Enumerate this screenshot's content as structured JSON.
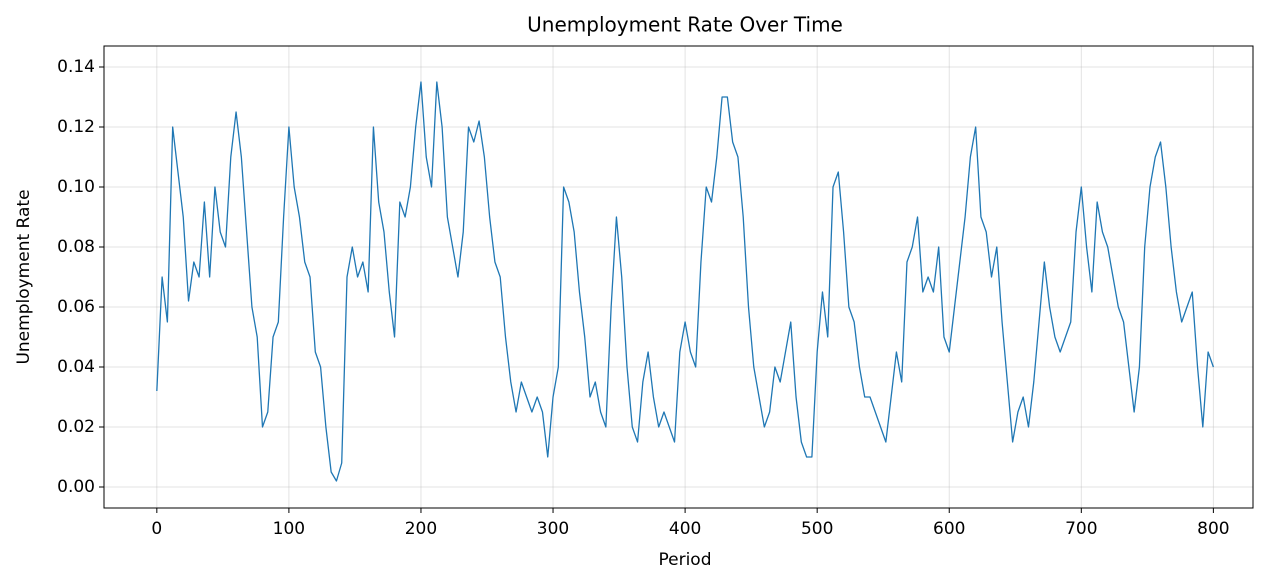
{
  "chart_data": {
    "type": "line",
    "title": "Unemployment Rate Over Time",
    "xlabel": "Period",
    "ylabel": "Unemployment Rate",
    "xlim": [
      -40,
      830
    ],
    "ylim": [
      -0.007,
      0.147
    ],
    "xticks": [
      0,
      100,
      200,
      300,
      400,
      500,
      600,
      700,
      800
    ],
    "yticks": [
      {
        "value": 0,
        "label": "0.00"
      },
      {
        "value": 0.02,
        "label": "0.02"
      },
      {
        "value": 0.04,
        "label": "0.04"
      },
      {
        "value": 0.06,
        "label": "0.06"
      },
      {
        "value": 0.08,
        "label": "0.08"
      },
      {
        "value": 0.1,
        "label": "0.10"
      },
      {
        "value": 0.12,
        "label": "0.12"
      },
      {
        "value": 0.14,
        "label": "0.14"
      }
    ],
    "grid": true,
    "x": [
      0,
      4,
      8,
      12,
      16,
      20,
      24,
      28,
      32,
      36,
      40,
      44,
      48,
      52,
      56,
      60,
      64,
      68,
      72,
      76,
      80,
      84,
      88,
      92,
      96,
      100,
      104,
      108,
      112,
      116,
      120,
      124,
      128,
      132,
      136,
      140,
      144,
      148,
      152,
      156,
      160,
      164,
      168,
      172,
      176,
      180,
      184,
      188,
      192,
      196,
      200,
      204,
      208,
      212,
      216,
      220,
      224,
      228,
      232,
      236,
      240,
      244,
      248,
      252,
      256,
      260,
      264,
      268,
      272,
      276,
      280,
      284,
      288,
      292,
      296,
      300,
      304,
      308,
      312,
      316,
      320,
      324,
      328,
      332,
      336,
      340,
      344,
      348,
      352,
      356,
      360,
      364,
      368,
      372,
      376,
      380,
      384,
      388,
      392,
      396,
      400,
      404,
      408,
      412,
      416,
      420,
      424,
      428,
      432,
      436,
      440,
      444,
      448,
      452,
      456,
      460,
      464,
      468,
      472,
      476,
      480,
      484,
      488,
      492,
      496,
      500,
      504,
      508,
      512,
      516,
      520,
      524,
      528,
      532,
      536,
      540,
      544,
      548,
      552,
      556,
      560,
      564,
      568,
      572,
      576,
      580,
      584,
      588,
      592,
      596,
      600,
      604,
      608,
      612,
      616,
      620,
      624,
      628,
      632,
      636,
      640,
      644,
      648,
      652,
      656,
      660,
      664,
      668,
      672,
      676,
      680,
      684,
      688,
      692,
      696,
      700,
      704,
      708,
      712,
      716,
      720,
      724,
      728,
      732,
      736,
      740,
      744,
      748,
      752,
      756,
      760,
      764,
      768,
      772,
      776,
      780,
      784,
      788,
      792,
      796,
      800
    ],
    "series": [
      {
        "color": "#1f77b4",
        "values": [
          0.032,
          0.07,
          0.055,
          0.12,
          0.105,
          0.09,
          0.062,
          0.075,
          0.07,
          0.095,
          0.07,
          0.1,
          0.085,
          0.08,
          0.11,
          0.125,
          0.11,
          0.085,
          0.06,
          0.05,
          0.02,
          0.025,
          0.05,
          0.055,
          0.09,
          0.12,
          0.1,
          0.09,
          0.075,
          0.07,
          0.045,
          0.04,
          0.02,
          0.005,
          0.002,
          0.008,
          0.07,
          0.08,
          0.07,
          0.075,
          0.065,
          0.12,
          0.095,
          0.085,
          0.065,
          0.05,
          0.095,
          0.09,
          0.1,
          0.12,
          0.135,
          0.11,
          0.1,
          0.135,
          0.12,
          0.09,
          0.08,
          0.07,
          0.085,
          0.12,
          0.115,
          0.122,
          0.11,
          0.09,
          0.075,
          0.07,
          0.05,
          0.035,
          0.025,
          0.035,
          0.03,
          0.025,
          0.03,
          0.025,
          0.01,
          0.03,
          0.04,
          0.1,
          0.095,
          0.085,
          0.065,
          0.05,
          0.03,
          0.035,
          0.025,
          0.02,
          0.06,
          0.09,
          0.07,
          0.04,
          0.02,
          0.015,
          0.035,
          0.045,
          0.03,
          0.02,
          0.025,
          0.02,
          0.015,
          0.045,
          0.055,
          0.045,
          0.04,
          0.075,
          0.1,
          0.095,
          0.11,
          0.13,
          0.13,
          0.115,
          0.11,
          0.09,
          0.06,
          0.04,
          0.03,
          0.02,
          0.025,
          0.04,
          0.035,
          0.045,
          0.055,
          0.03,
          0.015,
          0.01,
          0.01,
          0.045,
          0.065,
          0.05,
          0.1,
          0.105,
          0.085,
          0.06,
          0.055,
          0.04,
          0.03,
          0.03,
          0.025,
          0.02,
          0.015,
          0.03,
          0.045,
          0.035,
          0.075,
          0.08,
          0.09,
          0.065,
          0.07,
          0.065,
          0.08,
          0.05,
          0.045,
          0.06,
          0.075,
          0.09,
          0.11,
          0.12,
          0.09,
          0.085,
          0.07,
          0.08,
          0.055,
          0.035,
          0.015,
          0.025,
          0.03,
          0.02,
          0.035,
          0.055,
          0.075,
          0.06,
          0.05,
          0.045,
          0.05,
          0.055,
          0.085,
          0.1,
          0.08,
          0.065,
          0.095,
          0.085,
          0.08,
          0.07,
          0.06,
          0.055,
          0.04,
          0.025,
          0.04,
          0.08,
          0.1,
          0.11,
          0.115,
          0.1,
          0.08,
          0.065,
          0.055,
          0.06,
          0.065,
          0.04,
          0.02,
          0.045,
          0.04
        ]
      }
    ]
  }
}
